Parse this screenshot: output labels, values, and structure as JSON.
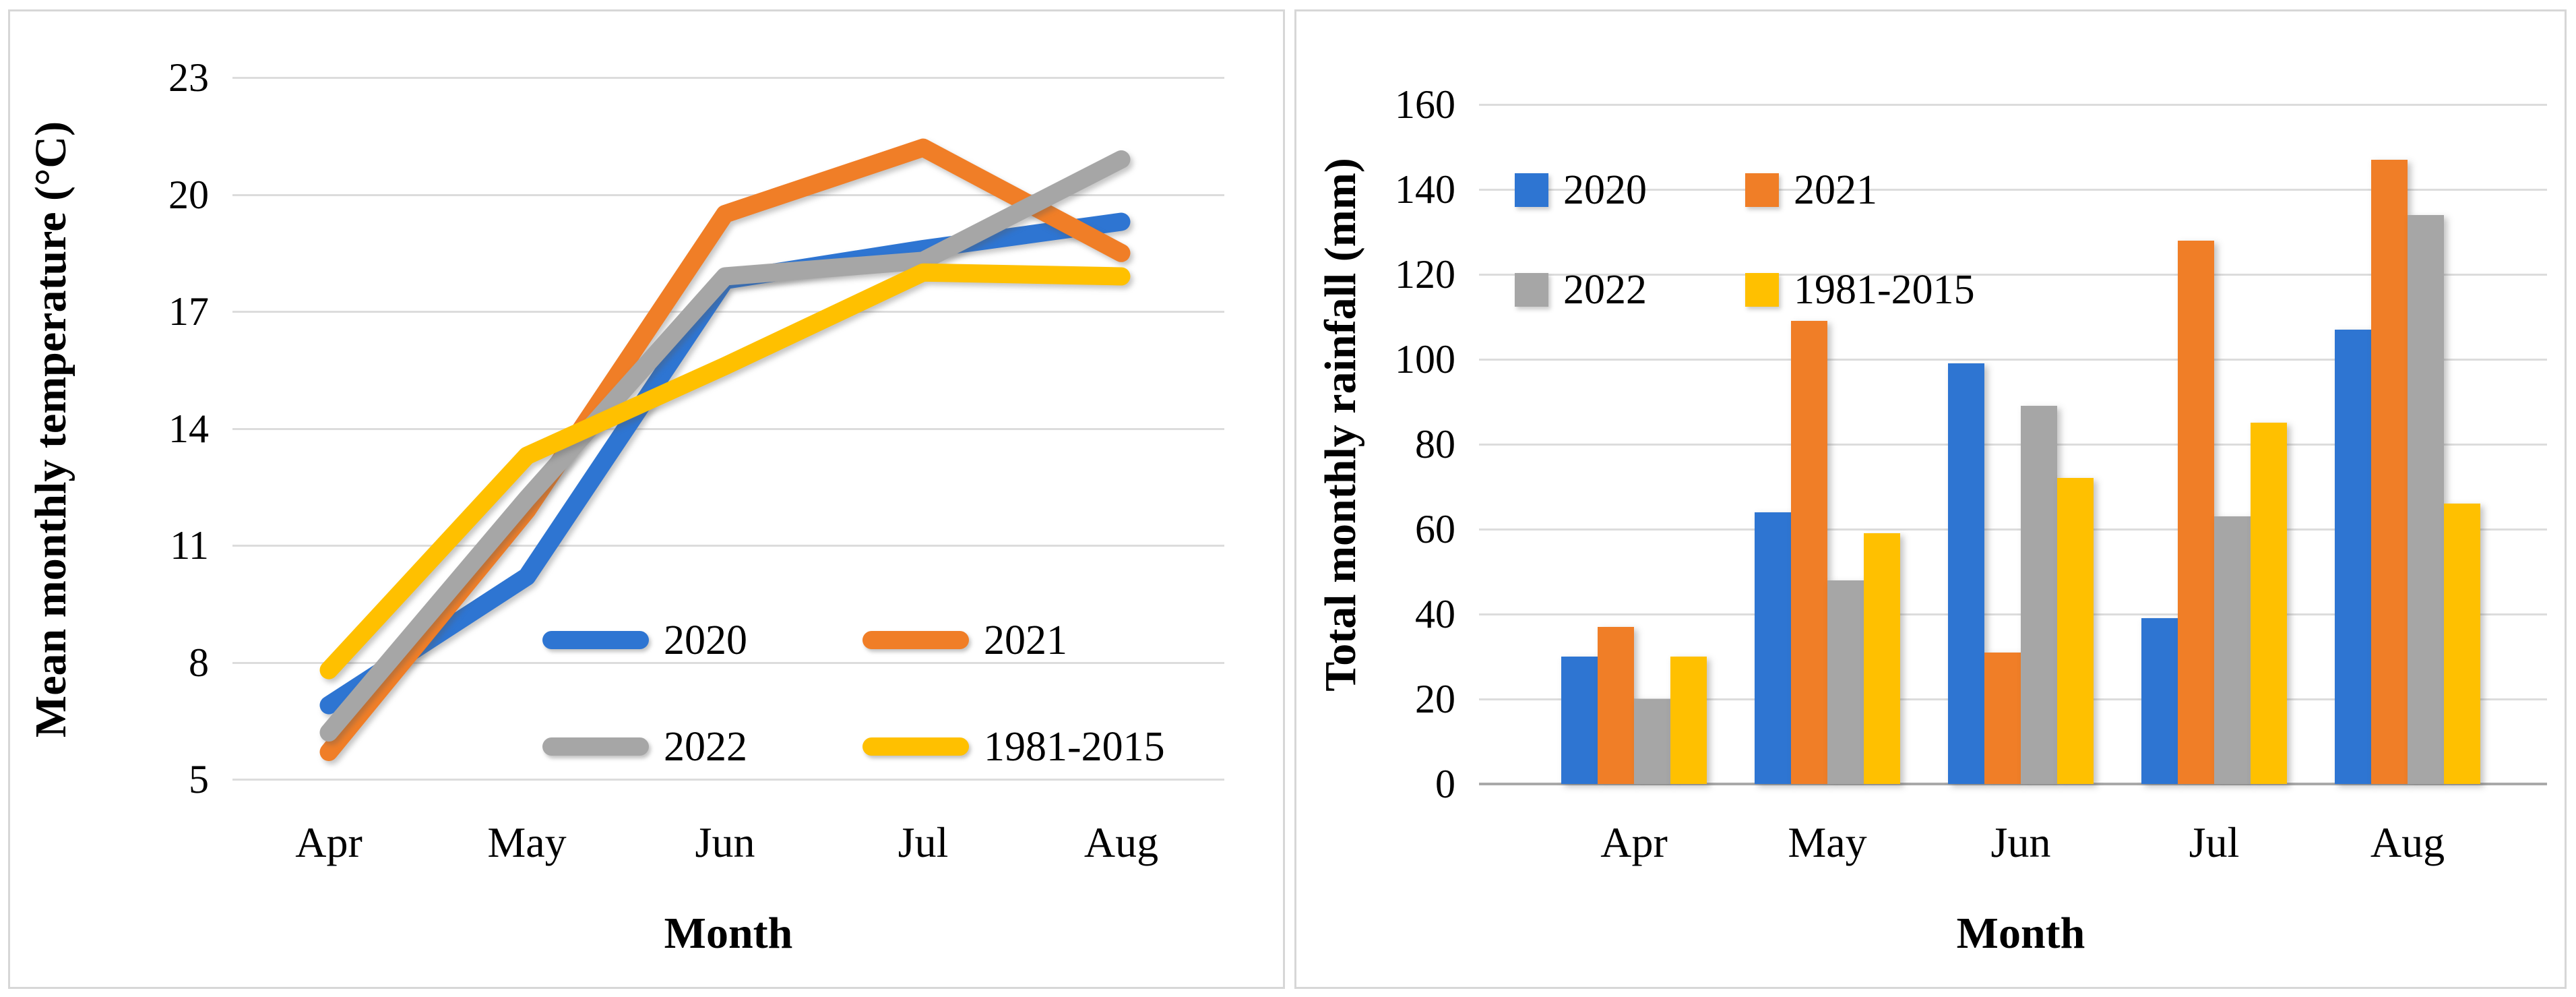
{
  "figure": {
    "series_labels": [
      "2020",
      "2021",
      "2022",
      "1981-2015"
    ],
    "colors": {
      "s2020": "#2e75d2",
      "s2021": "#f07e27",
      "s2022": "#a6a6a6",
      "s1981_2015": "#ffc000",
      "gridline": "#dcdcdc",
      "axis_line": "#a9a9a9",
      "panel_border": "#d7d7d7",
      "text": "#000000"
    },
    "left_panel": {
      "y_axis_title": "Mean monthly temperature (°C)",
      "x_axis_title": "Month",
      "y_tick_labels": [
        "23",
        "20",
        "17",
        "14",
        "11",
        "8",
        "5"
      ],
      "x_tick_labels": [
        "Apr",
        "May",
        "Jun",
        "Jul",
        "Aug"
      ]
    },
    "right_panel": {
      "y_axis_title": "Total monthly rainfall (mm)",
      "x_axis_title": "Month",
      "y_tick_labels": [
        "160",
        "140",
        "120",
        "100",
        "80",
        "60",
        "40",
        "20",
        "0"
      ],
      "x_tick_labels": [
        "Apr",
        "May",
        "Jun",
        "Jul",
        "Aug"
      ]
    }
  },
  "chart_data": [
    {
      "type": "line",
      "title": "",
      "xlabel": "Month",
      "ylabel": "Mean monthly temperature (°C)",
      "categories": [
        "Apr",
        "May",
        "Jun",
        "Jul",
        "Aug"
      ],
      "ylim": [
        5,
        23
      ],
      "ytick_step": 3,
      "grid": true,
      "legend_position": "inside-lower-right",
      "series": [
        {
          "name": "2020",
          "color": "#2e75d2",
          "values": [
            6.9,
            10.2,
            17.8,
            18.6,
            19.3
          ]
        },
        {
          "name": "2021",
          "color": "#f07e27",
          "values": [
            5.7,
            11.9,
            19.5,
            21.2,
            18.5
          ]
        },
        {
          "name": "2022",
          "color": "#a6a6a6",
          "values": [
            6.2,
            12.2,
            17.9,
            18.3,
            20.9
          ]
        },
        {
          "name": "1981-2015",
          "color": "#ffc000",
          "values": [
            7.8,
            13.3,
            15.6,
            18.0,
            17.9
          ]
        }
      ]
    },
    {
      "type": "bar",
      "title": "",
      "xlabel": "Month",
      "ylabel": "Total monthly rainfall (mm)",
      "categories": [
        "Apr",
        "May",
        "Jun",
        "Jul",
        "Aug"
      ],
      "ylim": [
        0,
        160
      ],
      "ytick_step": 20,
      "grid": true,
      "legend_position": "inside-upper-left",
      "series": [
        {
          "name": "2020",
          "color": "#2e75d2",
          "values": [
            30,
            64,
            99,
            39,
            107
          ]
        },
        {
          "name": "2021",
          "color": "#f07e27",
          "values": [
            37,
            109,
            31,
            128,
            147
          ]
        },
        {
          "name": "2022",
          "color": "#a6a6a6",
          "values": [
            20,
            48,
            89,
            63,
            134
          ]
        },
        {
          "name": "1981-2015",
          "color": "#ffc000",
          "values": [
            30,
            59,
            72,
            85,
            66
          ]
        }
      ]
    }
  ]
}
